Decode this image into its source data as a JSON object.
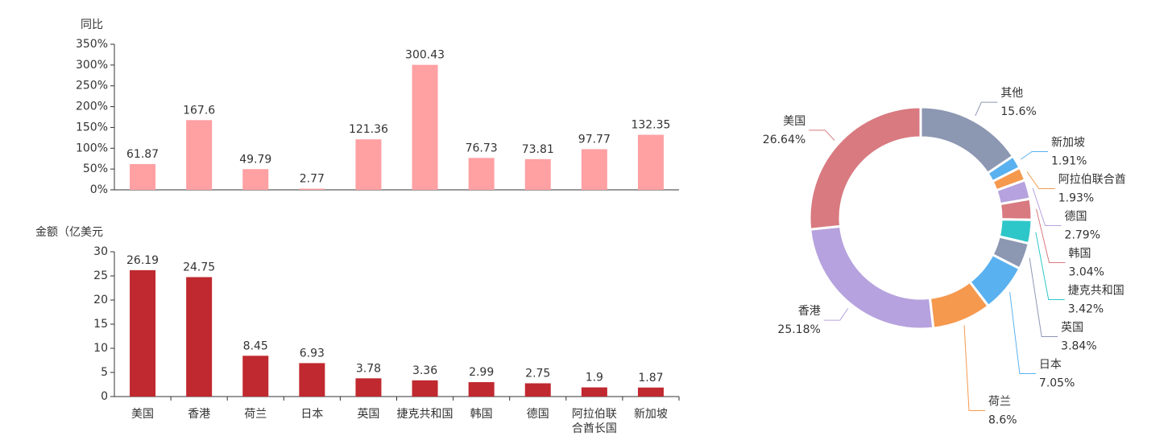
{
  "chart_data": [
    {
      "type": "bar",
      "y_label": "同比",
      "values": [
        61.87,
        167.6,
        49.79,
        2.77,
        121.36,
        300.43,
        76.73,
        73.81,
        97.77,
        132.35
      ],
      "color": "#ffa0a3",
      "ylim": [
        0,
        350
      ],
      "yticks": [
        {
          "value": 0,
          "label": "0%"
        },
        {
          "value": 50,
          "label": "50%"
        },
        {
          "value": 100,
          "label": "100%"
        },
        {
          "value": 150,
          "label": "150%"
        },
        {
          "value": 200,
          "label": "200%"
        },
        {
          "value": 250,
          "label": "250%"
        },
        {
          "value": 300,
          "label": "300%"
        },
        {
          "value": 350,
          "label": "350%"
        }
      ]
    },
    {
      "type": "bar",
      "y_label": "金额（亿美元",
      "categories": [
        "美国",
        "香港",
        "荷兰",
        "日本",
        "英国",
        "捷克共和国",
        "韩国",
        "德国",
        "阿拉伯联合酋长国",
        "新加坡"
      ],
      "values": [
        26.19,
        24.75,
        8.45,
        6.93,
        3.78,
        3.36,
        2.99,
        2.75,
        1.9,
        1.87
      ],
      "color": "#c0292f",
      "ylim": [
        0,
        30
      ],
      "yticks": [
        0,
        5,
        10,
        15,
        20,
        25,
        30
      ]
    },
    {
      "type": "donut",
      "categories": [
        "其他",
        "新加坡",
        "阿拉伯联合酋",
        "德国",
        "韩国",
        "捷克共和国",
        "英国",
        "日本",
        "荷兰",
        "香港",
        "美国"
      ],
      "values": [
        15.6,
        1.91,
        1.93,
        2.79,
        3.04,
        3.42,
        3.84,
        7.05,
        8.6,
        25.18,
        26.64
      ],
      "value_labels": [
        "15.6%",
        "1.91%",
        "1.93%",
        "2.79%",
        "3.04%",
        "3.42%",
        "3.84%",
        "7.05%",
        "8.6%",
        "25.18%",
        "26.64%"
      ],
      "colors": [
        "#8c97b2",
        "#5ab1ef",
        "#f5994e",
        "#b6a2de",
        "#d87a80",
        "#2ec7c9",
        "#8c97b2",
        "#5ab1ef",
        "#f5994e",
        "#b6a2de",
        "#d87a80"
      ]
    }
  ]
}
